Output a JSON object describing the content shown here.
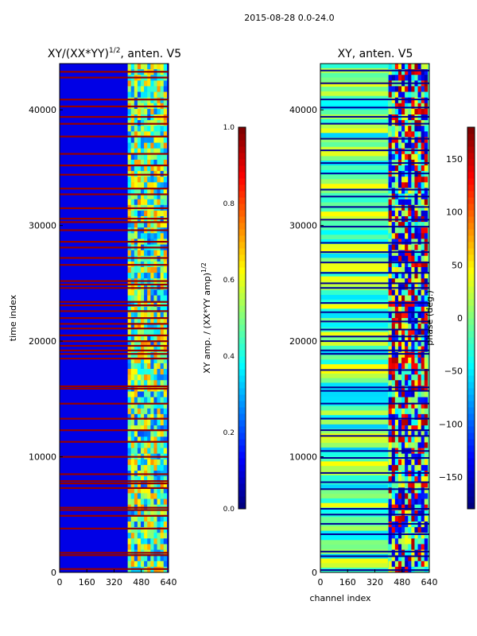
{
  "figure_title": "2015-08-28 0.0-24.0",
  "chart_data": [
    {
      "type": "heatmap",
      "title": "XY/(XX*YY)",
      "title_superscript": "1/2",
      "title_suffix": ", anten. V5",
      "xlabel": "",
      "ylabel": "time index",
      "xlim": [
        0,
        640
      ],
      "ylim": [
        0,
        44000
      ],
      "xticks": [
        0,
        160,
        320,
        480,
        640
      ],
      "yticks": [
        0,
        10000,
        20000,
        30000,
        40000
      ],
      "colormap": "jet",
      "colorbar": {
        "label": "XY amp. / (XX*YY amp)",
        "label_superscript": "1/2",
        "range": [
          0.0,
          1.0
        ],
        "ticks": [
          "0.0",
          "0.2",
          "0.4",
          "0.6",
          "0.8",
          "1.0"
        ]
      },
      "band_low_channel": 400,
      "band_high_channel": 630,
      "saturated_time_rows": [
        300,
        1500,
        1700,
        3800,
        4900,
        5400,
        5600,
        7300,
        7700,
        7900,
        8500,
        10000,
        11300,
        12300,
        13300,
        14600,
        15900,
        16100,
        18500,
        18900,
        19200,
        19600,
        20000,
        20500,
        21100,
        21500,
        22000,
        22600,
        23100,
        23400,
        24600,
        24900,
        25200,
        26600,
        27200,
        28100,
        28600,
        29600,
        30300,
        30600,
        31500,
        32700,
        33200,
        34400,
        35200,
        36200,
        37700,
        38800,
        39400,
        40300,
        40900,
        42800,
        43300
      ]
    },
    {
      "type": "heatmap",
      "title": "XY, anten. V5",
      "xlabel": "channel index",
      "ylabel": "",
      "xlim": [
        0,
        640
      ],
      "ylim": [
        0,
        44000
      ],
      "xticks": [
        0,
        160,
        320,
        480,
        640
      ],
      "yticks": [
        0,
        10000,
        20000,
        30000,
        40000
      ],
      "colormap": "jet",
      "colorbar": {
        "label": "phase (deg.)",
        "range": [
          -180,
          180
        ],
        "ticks": [
          "−150",
          "−100",
          "−50",
          "0",
          "50",
          "100",
          "150"
        ]
      },
      "band_low_channel": 400,
      "band_high_channel": 630,
      "dark_time_rows": [
        200,
        1400,
        1800,
        3300,
        4200,
        5000,
        5500,
        7200,
        7800,
        8600,
        9900,
        10500,
        11800,
        12300,
        13300,
        14600,
        15700,
        16000,
        17500,
        18900,
        19200,
        20000,
        20400,
        21000,
        21700,
        22500,
        23300,
        24600,
        25000,
        25900,
        26800,
        27700,
        28500,
        29900,
        30500,
        31600,
        32500,
        33100,
        34500,
        35400,
        36500,
        37500,
        38800,
        39400,
        40200,
        40900,
        42300,
        43400
      ]
    }
  ]
}
